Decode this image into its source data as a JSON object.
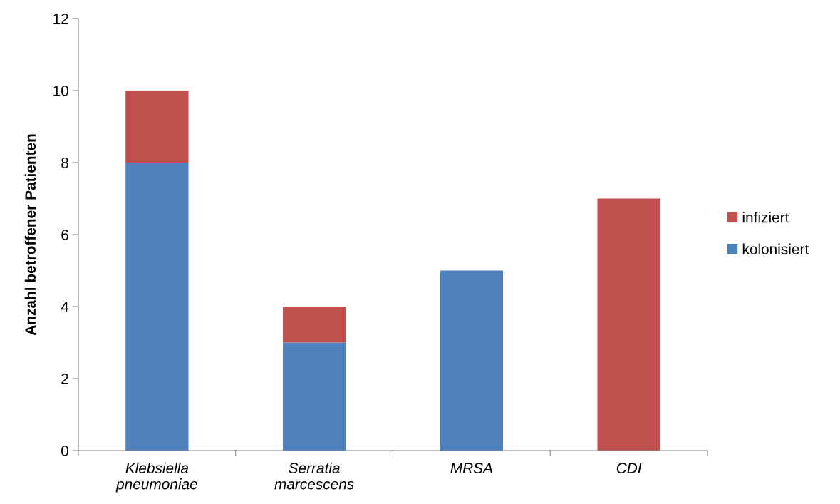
{
  "chart_data": {
    "type": "bar",
    "stacked": true,
    "ylabel": "Anzahl betroffener Patienten",
    "categories": [
      "Klebsiella\npneumoniae",
      "Serratia\nmarcescens",
      "MRSA",
      "CDI"
    ],
    "series": [
      {
        "name": "kolonisiert",
        "color": "#4f81bd",
        "values": [
          8,
          3,
          5,
          0
        ]
      },
      {
        "name": "infiziert",
        "color": "#c0504d",
        "values": [
          2,
          1,
          0,
          7
        ]
      }
    ],
    "ylim": [
      0,
      12
    ],
    "yticks": [
      0,
      2,
      4,
      6,
      8,
      10,
      12
    ],
    "grid": false,
    "legend": "right"
  }
}
